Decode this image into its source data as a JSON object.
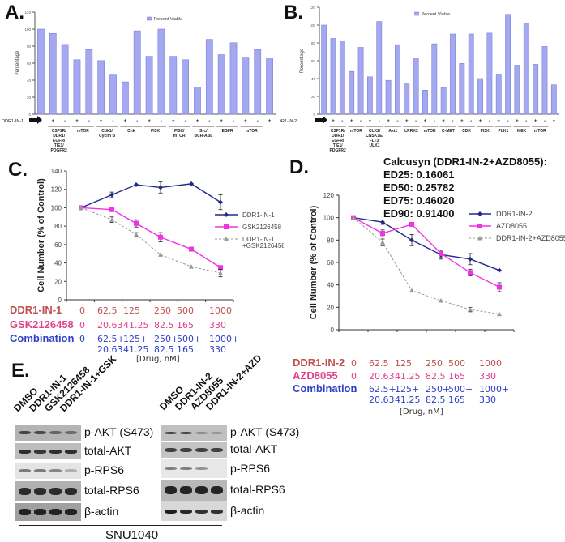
{
  "panels": {
    "A": {
      "letter": "A."
    },
    "B": {
      "letter": "B."
    },
    "C": {
      "letter": "C."
    },
    "D": {
      "letter": "D."
    },
    "E": {
      "letter": "E."
    }
  },
  "chart_data": [
    {
      "id": "A",
      "type": "bar",
      "title": "",
      "legend": "Percent Viable",
      "legend_position": "top-center",
      "ylabel": "Percentage",
      "xlabel": "",
      "ylim": [
        0,
        120
      ],
      "yticks": [
        0,
        20,
        40,
        60,
        80,
        100,
        120
      ],
      "row_label": "DDR1-IN-1",
      "signs": [
        "-",
        "+",
        "-",
        "+",
        "-",
        "+",
        "-",
        "+",
        "-",
        "+",
        "-",
        "+",
        "-",
        "+",
        "-",
        "+",
        "-",
        "+",
        "-",
        "+"
      ],
      "groups": [
        "",
        "CSF1R/\nDDR1/\nEGFR/\nTIE1/\nPDGFR2",
        "mTOR",
        "Cdk1/\nCyclin B",
        "Chk",
        "PI3K",
        "PI3K/\nmTOR",
        "Src/\nBCR-ABL",
        "EGFR",
        "mTOR"
      ],
      "values": [
        100,
        95,
        82,
        64,
        76,
        63,
        47,
        38,
        98,
        68,
        100,
        68,
        64,
        32,
        88,
        70,
        84,
        67,
        76,
        66
      ],
      "color": "#a3a8f0"
    },
    {
      "id": "B",
      "type": "bar",
      "title": "",
      "legend": "Percent Viable",
      "legend_position": "top-center",
      "ylabel": "Percentage",
      "xlabel": "",
      "ylim": [
        0,
        120
      ],
      "yticks": [
        0,
        20,
        40,
        60,
        80,
        100,
        120
      ],
      "row_label": "DDR1-IN-2",
      "signs": [
        "-",
        "+",
        "-",
        "+",
        "-",
        "+",
        "-",
        "+",
        "-",
        "+",
        "-",
        "+",
        "-",
        "+",
        "-",
        "+",
        "-",
        "+",
        "-",
        "+",
        "-",
        "+",
        "-",
        "+",
        "-",
        "+"
      ],
      "groups": [
        "",
        "CSF1R/\nDDR1/\nEGFR/\nTIE1/\nPDGFR2",
        "mTOR",
        "CLK2/\nCNSK1E/\nFLT3/\nULK1",
        "Akt1",
        "LRRK2",
        "mTOR",
        "C-MET",
        "CDK",
        "PI3K",
        "PLK1",
        "MEK",
        "mTOR"
      ],
      "values": [
        100,
        85,
        82,
        48,
        75,
        42,
        104,
        38,
        78,
        34,
        63,
        27,
        79,
        30,
        90,
        57,
        90,
        40,
        91,
        45,
        112,
        55,
        102,
        56,
        76,
        33
      ],
      "color": "#a3a8f0"
    },
    {
      "id": "C",
      "type": "line",
      "title": "",
      "ylabel": "Cell Number (% of Control)",
      "xlabel": "[Drug, nM]",
      "ylim": [
        0,
        140
      ],
      "yticks": [
        0,
        20,
        40,
        60,
        80,
        100,
        120,
        140
      ],
      "legend_position": "right",
      "dose_rows": [
        {
          "label": "DDR1-IN-1",
          "color": "#c0504d",
          "values": [
            "0",
            "62.5",
            "125",
            "250",
            "500",
            "1000"
          ]
        },
        {
          "label": "GSK2126458",
          "color": "#e0408a",
          "values": [
            "0",
            "20.63",
            "41.25",
            "82.5",
            "165",
            "330"
          ]
        },
        {
          "label": "Combination",
          "color": "#3040c8",
          "values": [
            "0",
            "62.5+\n20.63",
            "125+\n41.25",
            "250+\n82.5",
            "500+\n165",
            "1000+\n330"
          ]
        }
      ],
      "series": [
        {
          "name": "DDR1-IN-1",
          "values": [
            100,
            114,
            125,
            122,
            126,
            106
          ],
          "errors": [
            1,
            3,
            1,
            6,
            1,
            8
          ],
          "color": "#1f2a8a",
          "marker": "diamond",
          "dash": false
        },
        {
          "name": "GSK2126458",
          "values": [
            100,
            98,
            83,
            68,
            55,
            35
          ],
          "errors": [
            1,
            1,
            4,
            5,
            1,
            2
          ],
          "color": "#f032e6",
          "marker": "square",
          "dash": false
        },
        {
          "name": "DDR1-IN-1\n+GSK2126458",
          "values": [
            100,
            87,
            71,
            49,
            36,
            29
          ],
          "errors": [
            1,
            3,
            2,
            1,
            1,
            4
          ],
          "color": "#999999",
          "marker": "triangle",
          "dash": true
        }
      ]
    },
    {
      "id": "D",
      "type": "line",
      "title": "",
      "ylabel": "Cell Number (% of Control)",
      "xlabel": "[Drug, nM]",
      "ylim": [
        0,
        120
      ],
      "yticks": [
        0,
        20,
        40,
        60,
        80,
        100,
        120
      ],
      "legend_position": "top-right",
      "annotation": [
        "Calcusyn (DDR1-IN-2+AZD8055):",
        "ED25: 0.16061",
        "ED50: 0.25782",
        "ED75: 0.46020",
        "ED90: 0.91400"
      ],
      "dose_rows": [
        {
          "label": "DDR1-IN-2",
          "color": "#c0504d",
          "values": [
            "0",
            "62.5",
            "125",
            "250",
            "500",
            "1000"
          ]
        },
        {
          "label": "AZD8055",
          "color": "#e0408a",
          "values": [
            "0",
            "20.63",
            "41.25",
            "82.5",
            "165",
            "330"
          ]
        },
        {
          "label": "Combination",
          "color": "#3040c8",
          "values": [
            "0",
            "62.5+\n20.63",
            "125+\n41.25",
            "250+\n82.5",
            "500+\n165",
            "1000+\n330"
          ]
        }
      ],
      "series": [
        {
          "name": "DDR1-IN-2",
          "values": [
            100,
            96,
            80,
            67,
            63,
            53
          ],
          "errors": [
            1,
            2,
            5,
            4,
            5,
            1
          ],
          "color": "#1f2a8a",
          "marker": "diamond",
          "dash": false
        },
        {
          "name": "AZD8055",
          "values": [
            100,
            86,
            94,
            68,
            51,
            38
          ],
          "errors": [
            1,
            3,
            1,
            3,
            3,
            4
          ],
          "color": "#f032e6",
          "marker": "square",
          "dash": false
        },
        {
          "name": "DDR1-IN-2+AZD8055",
          "values": [
            100,
            78,
            35,
            26,
            18,
            14
          ],
          "errors": [
            1,
            3,
            1,
            1,
            2,
            1
          ],
          "color": "#999999",
          "marker": "triangle",
          "dash": true
        }
      ]
    }
  ],
  "westerns": {
    "left": {
      "lanes": [
        "DMSO",
        "DDR1-IN-1",
        "GSK2126458",
        "DDR1-IN-1+GSK"
      ],
      "rows": [
        "p-AKT (S473)",
        "total-AKT",
        "p-RPS6",
        "total-RPS6",
        "β-actin"
      ]
    },
    "right": {
      "lanes": [
        "DMSO",
        "DDR1-IN-2",
        "AZD8055",
        "DDR1-IN-2+AZD"
      ],
      "rows": [
        "p-AKT (S473)",
        "total-AKT",
        "p-RPS6",
        "total-RPS6",
        "β-actin"
      ]
    },
    "cell_line": "SNU1040"
  }
}
